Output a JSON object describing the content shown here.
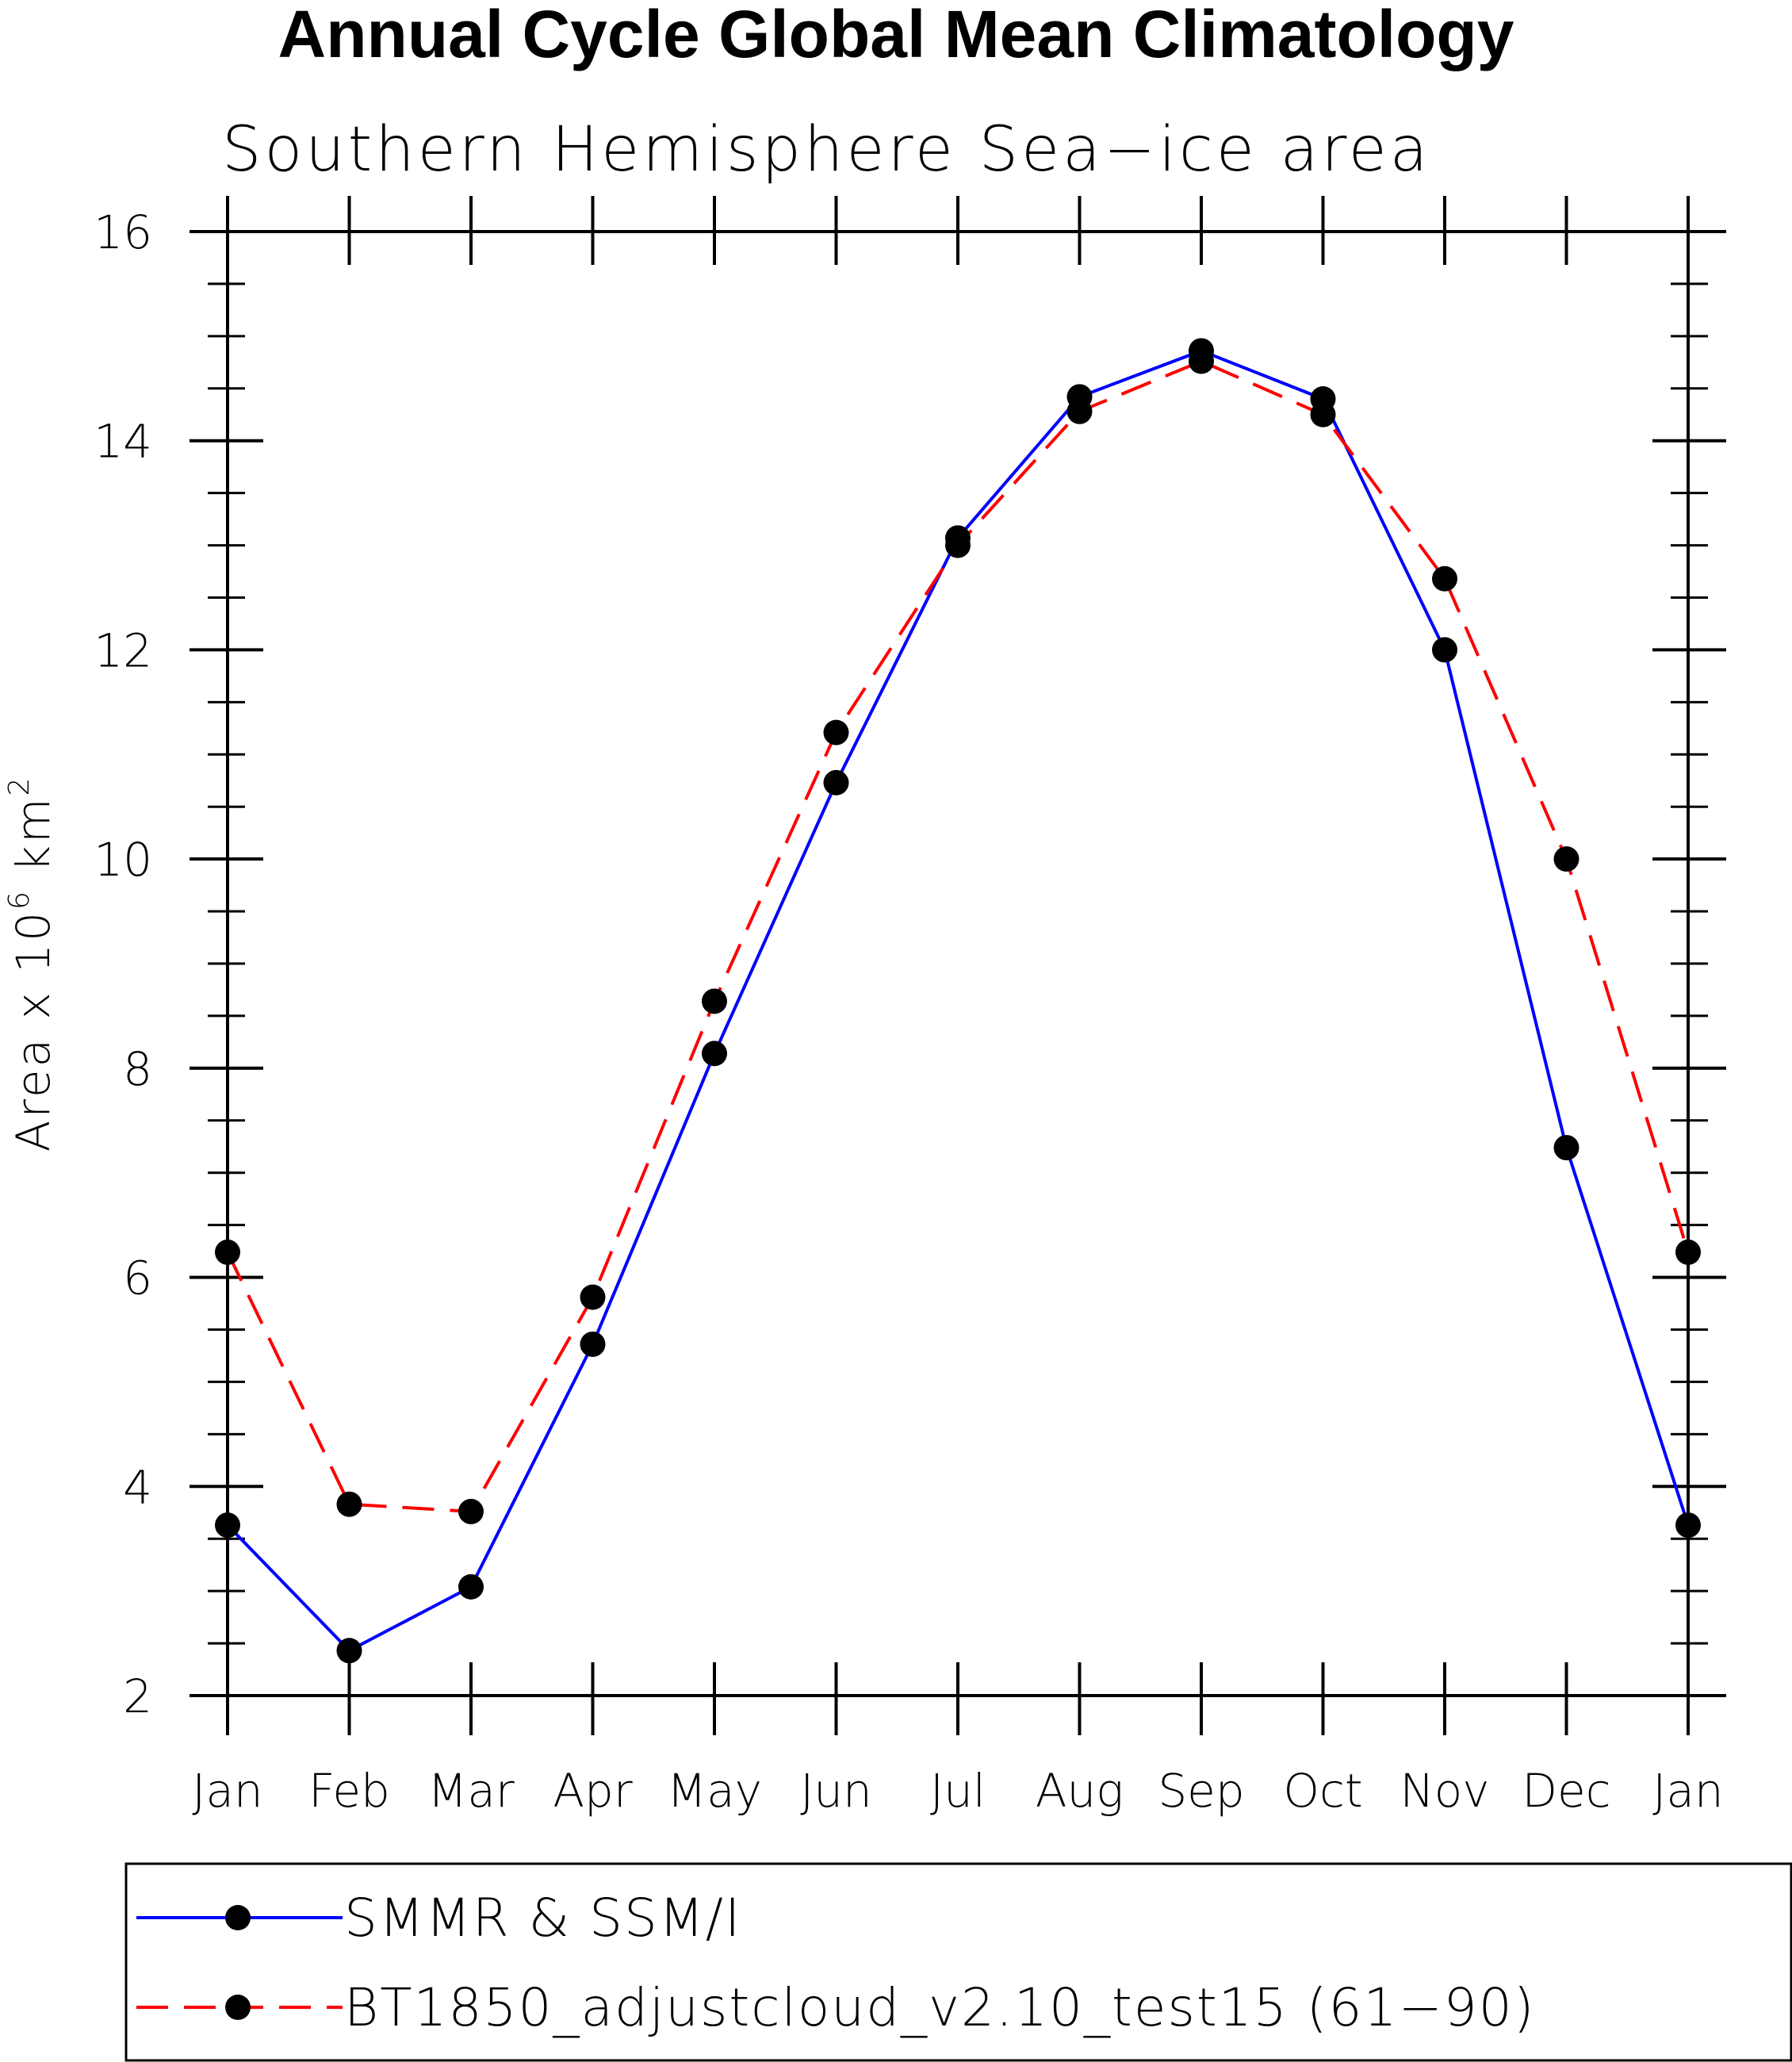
{
  "chart_data": {
    "type": "line",
    "title": "Annual Cycle Global Mean Climatology",
    "subtitle": "Southern Hemisphere Sea−ice area",
    "ylabel_main": "Area x 10",
    "ylabel_sup1": "6",
    "ylabel_mid": " km",
    "ylabel_sup2": "2",
    "categories": [
      "Jan",
      "Feb",
      "Mar",
      "Apr",
      "May",
      "Jun",
      "Jul",
      "Aug",
      "Sep",
      "Oct",
      "Nov",
      "Dec",
      "Jan"
    ],
    "ylim": [
      2,
      16
    ],
    "yticks": [
      2,
      4,
      6,
      8,
      10,
      12,
      14,
      16
    ],
    "yticklabels": [
      "2",
      "4",
      "6",
      "8",
      "10",
      "12",
      "14",
      "16"
    ],
    "series": [
      {
        "name": "SMMR & SSM/I",
        "color": "#0000ff",
        "dash": "solid",
        "values": [
          3.63,
          2.43,
          3.04,
          5.36,
          8.14,
          10.73,
          13.07,
          14.42,
          14.86,
          14.4,
          12.0,
          7.24,
          3.63
        ]
      },
      {
        "name": "BT1850_adjustcloud_v2.10_test15 (61−90)",
        "color": "#ff0000",
        "dash": "dashed",
        "values": [
          6.24,
          3.83,
          3.76,
          5.81,
          8.64,
          11.21,
          13.0,
          14.28,
          14.76,
          14.25,
          12.68,
          10.0,
          6.24
        ]
      }
    ],
    "marker_color": "#000000",
    "legend_position": "bottom"
  }
}
